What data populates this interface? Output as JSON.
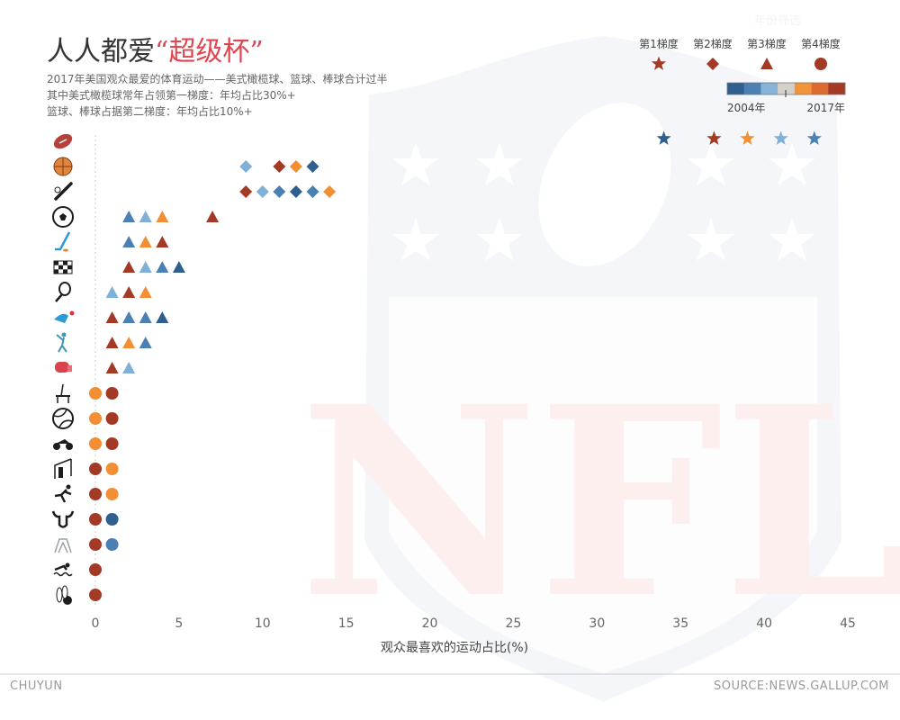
{
  "header": {
    "title_main": "人人都爱",
    "title_highlight": "“超级杯”",
    "subtitle_lines": [
      "2017年美国观众最爱的体育运动——美式橄榄球、篮球、棒球合计过半",
      "其中美式橄榄球常年占领第一梯度：年均占比30%+",
      "篮球、棒球占据第二梯度：年均占比10%+"
    ],
    "faint_label": "年份筛选"
  },
  "legend": {
    "tiers": [
      {
        "label": "第1梯度",
        "marker": "star"
      },
      {
        "label": "第2梯度",
        "marker": "diamond"
      },
      {
        "label": "第3梯度",
        "marker": "triangle"
      },
      {
        "label": "第4梯度",
        "marker": "circle"
      }
    ],
    "year_start": "2004年",
    "year_end": "2017年",
    "color_ramp": [
      "#2f5f8f",
      "#4b80b4",
      "#87b3d8",
      "#d6d1c8",
      "#f2953a",
      "#dd6b2e",
      "#a33a26"
    ]
  },
  "colors": {
    "dark_blue": "#2f5f8f",
    "mid_blue": "#4b80b4",
    "light_blue": "#7fb0d8",
    "orange": "#f28e34",
    "dark_red": "#a33a26",
    "logo": "#f5f6f9",
    "logo_red": "#fcefee"
  },
  "footer": {
    "left": "CHUYUN",
    "right": "SOURCE:NEWS.GALLUP.COM"
  },
  "chart_data": {
    "type": "scatter",
    "xlabel": "观众最喜欢的运动占比(%)",
    "xlim": [
      0,
      45
    ],
    "xticks": [
      "0",
      "5",
      "10",
      "15",
      "20",
      "25",
      "30",
      "35",
      "40",
      "45"
    ],
    "rows": [
      {
        "sport_icon": "american-football-icon",
        "tier": "star",
        "points": [
          {
            "x": 34,
            "c": "dark_blue"
          },
          {
            "x": 37,
            "c": "dark_red"
          },
          {
            "x": 39,
            "c": "orange"
          },
          {
            "x": 41,
            "c": "light_blue"
          },
          {
            "x": 43,
            "c": "mid_blue"
          }
        ]
      },
      {
        "sport_icon": "basketball-icon",
        "tier": "diamond",
        "points": [
          {
            "x": 9,
            "c": "light_blue"
          },
          {
            "x": 11,
            "c": "dark_red"
          },
          {
            "x": 12,
            "c": "orange"
          },
          {
            "x": 13,
            "c": "dark_blue"
          }
        ]
      },
      {
        "sport_icon": "baseball-icon",
        "tier": "diamond",
        "points": [
          {
            "x": 9,
            "c": "dark_red"
          },
          {
            "x": 10,
            "c": "light_blue"
          },
          {
            "x": 11,
            "c": "mid_blue"
          },
          {
            "x": 12,
            "c": "dark_blue"
          },
          {
            "x": 13,
            "c": "mid_blue"
          },
          {
            "x": 14,
            "c": "orange"
          }
        ]
      },
      {
        "sport_icon": "soccer-icon",
        "tier": "triangle",
        "points": [
          {
            "x": 2,
            "c": "mid_blue"
          },
          {
            "x": 3,
            "c": "light_blue"
          },
          {
            "x": 4,
            "c": "orange"
          },
          {
            "x": 7,
            "c": "dark_red"
          }
        ]
      },
      {
        "sport_icon": "ice-hockey-icon",
        "tier": "triangle",
        "points": [
          {
            "x": 2,
            "c": "mid_blue"
          },
          {
            "x": 3,
            "c": "orange"
          },
          {
            "x": 4,
            "c": "dark_red"
          }
        ]
      },
      {
        "sport_icon": "auto-racing-icon",
        "tier": "triangle",
        "points": [
          {
            "x": 2,
            "c": "dark_red"
          },
          {
            "x": 3,
            "c": "light_blue"
          },
          {
            "x": 4,
            "c": "mid_blue"
          },
          {
            "x": 5,
            "c": "dark_blue"
          }
        ]
      },
      {
        "sport_icon": "tennis-icon",
        "tier": "triangle",
        "points": [
          {
            "x": 1,
            "c": "light_blue"
          },
          {
            "x": 2,
            "c": "dark_red"
          },
          {
            "x": 3,
            "c": "orange"
          }
        ]
      },
      {
        "sport_icon": "figure-skating-icon",
        "tier": "triangle",
        "points": [
          {
            "x": 1,
            "c": "dark_red"
          },
          {
            "x": 2,
            "c": "mid_blue"
          },
          {
            "x": 3,
            "c": "mid_blue"
          },
          {
            "x": 4,
            "c": "dark_blue"
          }
        ]
      },
      {
        "sport_icon": "golf-icon",
        "tier": "triangle",
        "points": [
          {
            "x": 1,
            "c": "dark_red"
          },
          {
            "x": 2,
            "c": "orange"
          },
          {
            "x": 3,
            "c": "mid_blue"
          }
        ]
      },
      {
        "sport_icon": "boxing-icon",
        "tier": "triangle",
        "points": [
          {
            "x": 1,
            "c": "dark_red"
          },
          {
            "x": 2,
            "c": "light_blue"
          }
        ]
      },
      {
        "sport_icon": "gymnastics-icon",
        "tier": "circle",
        "points": [
          {
            "x": 0,
            "c": "orange"
          },
          {
            "x": 1,
            "c": "dark_red"
          }
        ]
      },
      {
        "sport_icon": "volleyball-icon",
        "tier": "circle",
        "points": [
          {
            "x": 0,
            "c": "orange"
          },
          {
            "x": 1,
            "c": "dark_red"
          }
        ]
      },
      {
        "sport_icon": "motorcycle-racing-icon",
        "tier": "circle",
        "points": [
          {
            "x": 0,
            "c": "orange"
          },
          {
            "x": 1,
            "c": "dark_red"
          }
        ]
      },
      {
        "sport_icon": "fishing-icon",
        "tier": "circle",
        "points": [
          {
            "x": 0,
            "c": "dark_red"
          },
          {
            "x": 1,
            "c": "orange"
          }
        ]
      },
      {
        "sport_icon": "track-and-field-icon",
        "tier": "circle",
        "points": [
          {
            "x": 0,
            "c": "dark_red"
          },
          {
            "x": 1,
            "c": "orange"
          }
        ]
      },
      {
        "sport_icon": "rodeo-bull-icon",
        "tier": "circle",
        "points": [
          {
            "x": 0,
            "c": "dark_red"
          },
          {
            "x": 1,
            "c": "dark_blue"
          }
        ]
      },
      {
        "sport_icon": "wrestling-icon",
        "tier": "circle",
        "points": [
          {
            "x": 0,
            "c": "dark_red"
          },
          {
            "x": 1,
            "c": "mid_blue"
          }
        ]
      },
      {
        "sport_icon": "swimming-icon",
        "tier": "circle",
        "points": [
          {
            "x": 0,
            "c": "dark_red"
          }
        ]
      },
      {
        "sport_icon": "bowling-icon",
        "tier": "circle",
        "points": [
          {
            "x": 0,
            "c": "dark_red"
          }
        ]
      }
    ]
  }
}
